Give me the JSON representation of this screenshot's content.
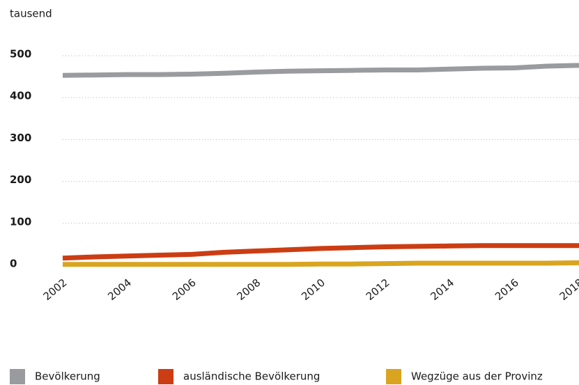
{
  "chart_data": {
    "type": "line",
    "y_label": "tausend",
    "x": [
      2002,
      2003,
      2004,
      2005,
      2006,
      2007,
      2008,
      2009,
      2010,
      2011,
      2012,
      2013,
      2014,
      2015,
      2016,
      2017,
      2018
    ],
    "xlim": [
      2002,
      2018
    ],
    "xticks": [
      2002,
      2004,
      2006,
      2008,
      2010,
      2012,
      2014,
      2016,
      2018
    ],
    "ylim": [
      0,
      500
    ],
    "yticks": [
      0,
      100,
      200,
      300,
      400,
      500
    ],
    "grid": true,
    "legend": "bottom",
    "series": [
      {
        "name": "Bevölkerung",
        "color": "#9a9b9e",
        "values": [
          453,
          454,
          455,
          455,
          456,
          458,
          461,
          463,
          464,
          465,
          466,
          466,
          468,
          470,
          471,
          475,
          477
        ]
      },
      {
        "name": "ausländische Bevölkerung",
        "color": "#cc3d13",
        "values": [
          17,
          20,
          22,
          24,
          26,
          31,
          34,
          37,
          40,
          42,
          44,
          45,
          46,
          47,
          47,
          47,
          47
        ]
      },
      {
        "name": "Wegzüge aus der Provinz",
        "color": "#d9a520",
        "values": [
          2,
          2,
          2,
          2,
          2,
          2,
          2,
          2,
          3,
          3,
          4,
          5,
          5,
          5,
          5,
          5,
          6
        ]
      }
    ]
  }
}
